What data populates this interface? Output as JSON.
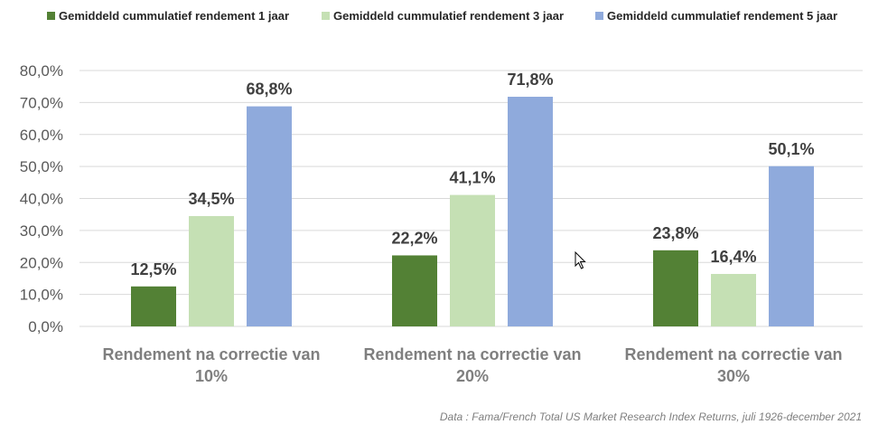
{
  "chart_data": {
    "type": "bar",
    "categories": [
      [
        "Rendement na correctie van",
        "10%"
      ],
      [
        "Rendement na correctie van",
        "20%"
      ],
      [
        "Rendement na correctie van",
        "30%"
      ]
    ],
    "series": [
      {
        "name": "Gemiddeld cummulatief rendement 1 jaar",
        "color": "#538135",
        "values": [
          12.5,
          22.2,
          23.8
        ],
        "labels": [
          "12,5%",
          "22,2%",
          "23,8%"
        ]
      },
      {
        "name": "Gemiddeld cummulatief rendement 3 jaar",
        "color": "#c5e0b4",
        "values": [
          34.5,
          41.1,
          16.4
        ],
        "labels": [
          "34,5%",
          "41,1%",
          "16,4%"
        ]
      },
      {
        "name": "Gemiddeld cummulatief rendement 5 jaar",
        "color": "#8faadc",
        "values": [
          68.8,
          71.8,
          50.1
        ],
        "labels": [
          "68,8%",
          "71,8%",
          "50,1%"
        ]
      }
    ],
    "ylim": [
      0,
      80
    ],
    "yticks": [
      0,
      10,
      20,
      30,
      40,
      50,
      60,
      70,
      80
    ],
    "ytick_labels": [
      "0,0%",
      "10,0%",
      "20,0%",
      "30,0%",
      "40,0%",
      "50,0%",
      "60,0%",
      "70,0%",
      "80,0%"
    ],
    "grid": true,
    "legend_position": "top",
    "source": "Data : Fama/French Total US Market Research Index Returns, juli 1926-december 2021"
  }
}
